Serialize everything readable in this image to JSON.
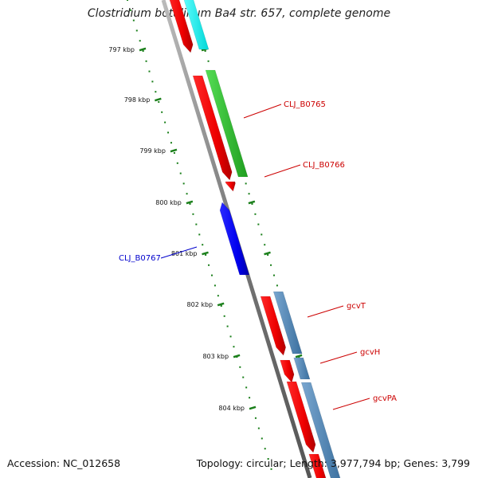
{
  "title": "Clostridium botulinum Ba4 str. 657, complete genome",
  "footer": {
    "accession": "Accession: NC_012658",
    "summary": "Topology: circular; Length: 3,977,794 bp; Genes: 3,799"
  },
  "ticks": [
    "797 kbp",
    "798 kbp",
    "799 kbp",
    "800 kbp",
    "801 kbp",
    "802 kbp",
    "803 kbp",
    "804 kbp"
  ],
  "gene_labels": [
    {
      "id": "clj-b0765",
      "text": "CLJ_B0765",
      "color": "#cc0000"
    },
    {
      "id": "clj-b0766",
      "text": "CLJ_B0766",
      "color": "#cc0000"
    },
    {
      "id": "clj-b0767",
      "text": "CLJ_B0767",
      "color": "#0000cc"
    },
    {
      "id": "gcvt",
      "text": "gcvT",
      "color": "#cc0000"
    },
    {
      "id": "gcvh",
      "text": "gcvH",
      "color": "#cc0000"
    },
    {
      "id": "gcvpa",
      "text": "gcvPA",
      "color": "#cc0000"
    }
  ],
  "colors": {
    "backbone": "#808080",
    "forward_cds": "#ff0000",
    "reverse_cds": "#0000ff",
    "cog_cyan": "#00ffff",
    "cog_green": "#33cc33",
    "cog_steelblue": "#4682b4",
    "tick_marks": "#1a7f1a"
  }
}
